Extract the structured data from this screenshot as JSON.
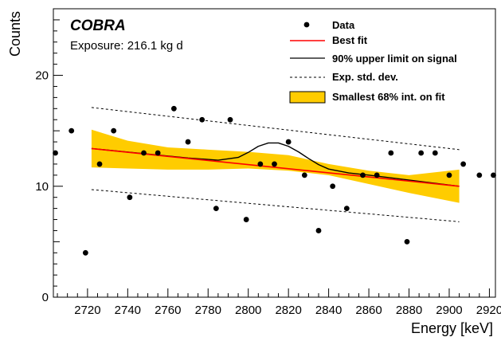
{
  "chart_data": {
    "type": "scatter",
    "experiment": "COBRA",
    "exposure_label": "Exposure: 216.1 kg d",
    "xlabel": "Energy [keV]",
    "ylabel": "Counts",
    "xlim": [
      2703,
      2923
    ],
    "ylim": [
      0,
      26
    ],
    "x_ticks": [
      2720,
      2740,
      2760,
      2780,
      2800,
      2820,
      2840,
      2860,
      2880,
      2900,
      2920
    ],
    "y_ticks": [
      0,
      10,
      20
    ],
    "legend": [
      {
        "key": "data",
        "label": "Data"
      },
      {
        "key": "best_fit",
        "label": "Best fit"
      },
      {
        "key": "upper_limit",
        "label": "90% upper limit on signal"
      },
      {
        "key": "std_dev",
        "label": "Exp. std. dev."
      },
      {
        "key": "band",
        "label": "Smallest 68% int. on fit"
      }
    ],
    "colors": {
      "data": "#000000",
      "best_fit": "#ff0000",
      "upper_limit": "#000000",
      "std_dev": "#000000",
      "band": "#ffcc00"
    },
    "series": [
      {
        "key": "data",
        "kind": "points",
        "x": [
          2704,
          2712,
          2719,
          2726,
          2733,
          2741,
          2748,
          2755,
          2763,
          2770,
          2777,
          2784,
          2791,
          2799,
          2806,
          2813,
          2820,
          2828,
          2835,
          2842,
          2849,
          2857,
          2864,
          2871,
          2879,
          2886,
          2893,
          2900,
          2907,
          2915,
          2922
        ],
        "y": [
          13,
          15,
          4,
          12,
          15,
          9,
          13,
          13,
          17,
          14,
          16,
          8,
          16,
          7,
          12,
          12,
          14,
          11,
          6,
          10,
          8,
          11,
          11,
          13,
          5,
          13,
          13,
          11,
          12,
          11,
          11
        ]
      },
      {
        "key": "best_fit",
        "kind": "line",
        "x": [
          2722,
          2905
        ],
        "y": [
          13.4,
          10.0
        ]
      },
      {
        "key": "upper_limit",
        "kind": "line",
        "x": [
          2722,
          2770,
          2785,
          2795,
          2800,
          2805,
          2810,
          2815,
          2820,
          2825,
          2830,
          2835,
          2840,
          2850,
          2860,
          2905
        ],
        "y": [
          13.4,
          12.55,
          12.35,
          12.6,
          13.05,
          13.6,
          13.9,
          13.9,
          13.6,
          13.1,
          12.5,
          11.95,
          11.55,
          11.2,
          11.0,
          10.0
        ]
      },
      {
        "key": "std_dev_upper",
        "kind": "line",
        "x": [
          2722,
          2905
        ],
        "y": [
          17.1,
          13.3
        ]
      },
      {
        "key": "std_dev_lower",
        "kind": "line",
        "x": [
          2722,
          2905
        ],
        "y": [
          9.7,
          6.8
        ]
      },
      {
        "key": "band",
        "kind": "band",
        "x": [
          2722,
          2740,
          2760,
          2780,
          2800,
          2820,
          2840,
          2860,
          2880,
          2905
        ],
        "y_low": [
          11.7,
          11.6,
          11.5,
          11.5,
          11.6,
          11.4,
          11.0,
          10.2,
          9.4,
          8.5
        ],
        "y_high": [
          15.1,
          14.1,
          13.5,
          13.3,
          13.1,
          12.8,
          12.0,
          11.4,
          11.0,
          11.5
        ]
      }
    ]
  }
}
